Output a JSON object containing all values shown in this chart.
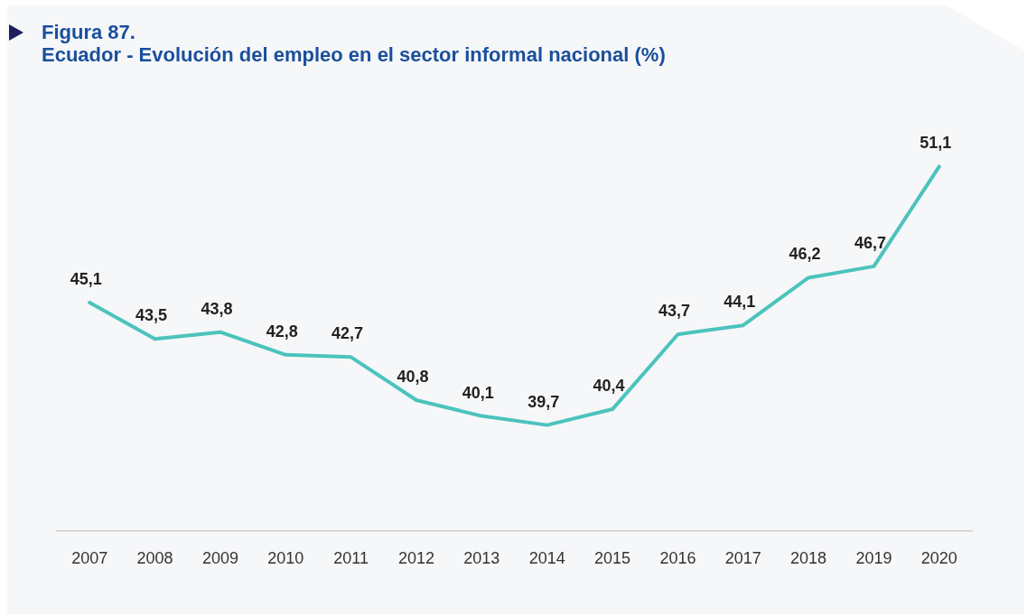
{
  "chart_data": {
    "type": "line",
    "title": "Figura 87.",
    "subtitle": "Ecuador - Evolución del empleo en el sector informal nacional (%)",
    "categories": [
      "2007",
      "2008",
      "2009",
      "2010",
      "2011",
      "2012",
      "2013",
      "2014",
      "2015",
      "2016",
      "2017",
      "2018",
      "2019",
      "2020"
    ],
    "series": [
      {
        "color": "#4cc3bd",
        "values": [
          45.1,
          43.5,
          43.8,
          42.8,
          42.7,
          40.8,
          40.1,
          39.7,
          40.4,
          43.7,
          44.1,
          46.2,
          46.7,
          51.1
        ],
        "value_labels": [
          "45,1",
          "43,5",
          "43,8",
          "42,8",
          "42,7",
          "40,8",
          "40,1",
          "39,7",
          "40,4",
          "43,7",
          "44,1",
          "46,2",
          "46,7",
          "51,1"
        ]
      }
    ],
    "marker": "none",
    "line_style": "solid"
  }
}
